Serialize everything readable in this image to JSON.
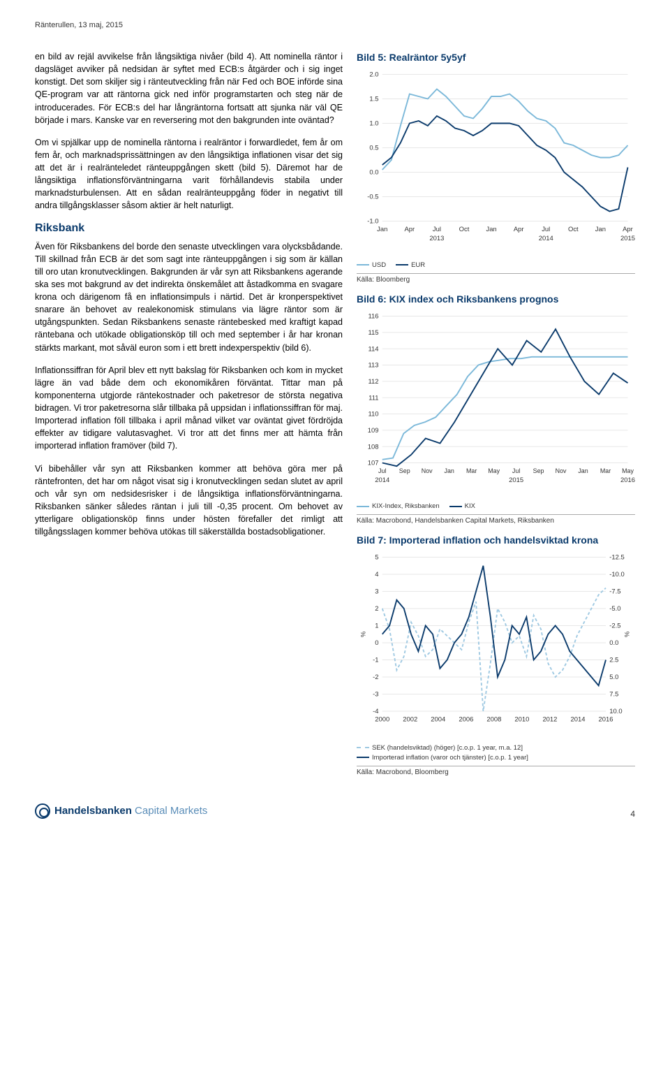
{
  "header": "Ränterullen, 13 maj, 2015",
  "paragraphs": {
    "p1": "en bild av rejäl avvikelse från långsiktiga nivåer (bild 4). Att nominella räntor i dagsläget avviker på nedsidan är syftet med ECB:s åtgärder och i sig inget konstigt. Det som skiljer sig i ränteutveckling från när Fed och BOE införde sina QE-program var att räntorna gick ned inför programstarten och steg när de introducerades. För ECB:s del har långräntorna fortsatt att sjunka när väl QE började i mars. Kanske var en reversering mot den bakgrunden inte oväntad?",
    "p2": "Om vi spjälkar upp de nominella räntorna i realräntor i forwardledet, fem år om fem år, och marknadsprissättningen av den långsiktiga inflationen visar det sig att det är i realränteledet ränteuppgången skett (bild 5). Däremot har de långsiktiga inflationsförväntningarna varit förhållandevis stabila under marknadsturbulensen. Att en sådan realränteuppgång föder in negativt till andra tillgångsklasser såsom aktier är helt naturligt.",
    "p3": "Även för Riksbankens del borde den senaste utvecklingen vara olycksbådande. Till skillnad från ECB är det som sagt inte ränteuppgången i sig som är källan till oro utan kronutvecklingen. Bakgrunden är vår syn att Riksbankens agerande ska ses mot bakgrund av det indirekta önskemålet att åstadkomma en svagare krona och därigenom få en inflationsimpuls i närtid. Det är kronperspektivet snarare än behovet av realekonomisk stimulans via lägre räntor som är utgångspunkten. Sedan Riksbankens senaste räntebesked med kraftigt kapad räntebana och utökade obligationsköp till och med september i år har kronan stärkts markant, mot såväl euron som i ett brett indexperspektiv (bild 6).",
    "p4": "Inflationssiffran för April blev ett nytt bakslag för Riksbanken och kom in mycket lägre än vad både dem och ekonomikåren förväntat. Tittar man på komponenterna utgjorde räntekostnader och paketresor de största negativa bidragen. Vi tror paketresorna slår tillbaka på uppsidan i inflationssiffran för maj. Importerad inflation föll tillbaka i april månad vilket var oväntat givet fördröjda effekter av tidigare valutasvaghet. Vi tror att det finns mer att hämta från importerad inflation framöver (bild 7).",
    "p5": "Vi bibehåller vår syn att Riksbanken kommer att behöva göra mer på räntefronten, det har om något visat sig i kronutvecklingen sedan slutet av april och vår syn om nedsidesrisker i de långsiktiga inflationsförväntningarna. Riksbanken sänker således räntan i juli till -0,35 procent. Om behovet av ytterligare obligationsköp finns under hösten förefaller det rimligt att tillgångsslagen kommer behöva utökas till säkerställda bostadsobligationer."
  },
  "riksbank_heading": "Riksbank",
  "chart5": {
    "title": "Bild 5: Realräntor 5y5yf",
    "type": "line",
    "ylim": [
      -1.0,
      2.0
    ],
    "ytick_step": 0.5,
    "yticks": [
      "2.0",
      "1.5",
      "1.0",
      "0.5",
      "0.0",
      "-0.5",
      "-1.0"
    ],
    "x_labels": [
      "Jan",
      "Apr",
      "Jul",
      "Oct",
      "Jan",
      "Apr",
      "Jul",
      "Oct",
      "Jan",
      "Apr"
    ],
    "x_years": [
      "2013",
      "2014",
      "2015"
    ],
    "series": [
      {
        "name": "USD",
        "color": "#7bb8d9",
        "data": [
          0.05,
          0.25,
          0.95,
          1.6,
          1.55,
          1.5,
          1.7,
          1.55,
          1.35,
          1.15,
          1.1,
          1.3,
          1.55,
          1.55,
          1.6,
          1.45,
          1.25,
          1.1,
          1.05,
          0.9,
          0.6,
          0.55,
          0.45,
          0.35,
          0.3,
          0.3,
          0.35,
          0.55
        ]
      },
      {
        "name": "EUR",
        "color": "#0a3a6b",
        "data": [
          0.15,
          0.3,
          0.6,
          1.0,
          1.05,
          0.95,
          1.15,
          1.05,
          0.9,
          0.85,
          0.75,
          0.85,
          1.0,
          1.0,
          1.0,
          0.95,
          0.75,
          0.55,
          0.45,
          0.3,
          0.0,
          -0.15,
          -0.3,
          -0.5,
          -0.7,
          -0.8,
          -0.75,
          0.1
        ]
      }
    ],
    "legend_labels": [
      "USD",
      "EUR"
    ],
    "source": "Källa: Bloomberg",
    "background_color": "#ffffff",
    "grid_color": "#d0d0d0",
    "font_size": 9
  },
  "chart6": {
    "title": "Bild 6: KIX index och Riksbankens prognos",
    "type": "line",
    "ylim": [
      107,
      116
    ],
    "ytick_step": 1,
    "yticks": [
      "116",
      "115",
      "114",
      "113",
      "112",
      "111",
      "110",
      "109",
      "108",
      "107"
    ],
    "x_labels": [
      "Jul",
      "Sep",
      "Nov",
      "Jan",
      "Mar",
      "May",
      "Jul",
      "Sep",
      "Nov",
      "Jan",
      "Mar",
      "May"
    ],
    "x_years": [
      "2014",
      "2015",
      "2016"
    ],
    "series": [
      {
        "name": "KIX-Index, Riksbanken",
        "color": "#7bb8d9",
        "data": [
          107.2,
          107.3,
          108.8,
          109.3,
          109.5,
          109.8,
          110.5,
          111.2,
          112.3,
          113.0,
          113.2,
          113.3,
          113.4,
          113.4,
          113.5,
          113.5,
          113.5,
          113.5,
          113.5,
          113.5,
          113.5,
          113.5,
          113.5,
          113.5
        ]
      },
      {
        "name": "KIX",
        "color": "#0a3a6b",
        "data": [
          107.0,
          106.8,
          107.5,
          108.5,
          108.2,
          109.5,
          111.0,
          112.5,
          114.0,
          113.0,
          114.5,
          113.8,
          115.2,
          113.5,
          112.0,
          111.2,
          112.5,
          111.9
        ]
      }
    ],
    "legend_labels": [
      "KIX-Index, Riksbanken",
      "KIX"
    ],
    "source": "Källa: Macrobond, Handelsbanken Capital Markets, Riksbanken",
    "background_color": "#ffffff",
    "grid_color": "#d0d0d0",
    "font_size": 9
  },
  "chart7": {
    "title": "Bild 7: Importerad inflation och handelsviktad krona",
    "type": "dual-axis-line",
    "ylim_left": [
      -4,
      5
    ],
    "ytick_left": [
      5,
      4,
      3,
      2,
      1,
      0,
      -1,
      -2,
      -3,
      -4
    ],
    "ylim_right": [
      10.0,
      -12.5
    ],
    "ytick_right": [
      "-12.5",
      "-10.0",
      "-7.5",
      "-5.0",
      "-2.5",
      "0.0",
      "2.5",
      "5.0",
      "7.5",
      "10.0"
    ],
    "x_labels": [
      "2000",
      "2002",
      "2004",
      "2006",
      "2008",
      "2010",
      "2012",
      "2014",
      "2016"
    ],
    "ylabel_left": "%",
    "ylabel_right": "%",
    "series": [
      {
        "name": "SEK (handelsviktad) (höger) [c.o.p. 1 year, m.a. 12]",
        "color": "#9fc9e2",
        "dash": "4,3",
        "data": [
          -5,
          -2,
          4,
          2,
          -3,
          -1,
          2,
          1,
          -2,
          -1,
          0,
          1,
          -3,
          -6,
          10,
          3,
          -5,
          -3,
          0,
          -1,
          2,
          -4,
          -2,
          3,
          5,
          4,
          2,
          -1,
          -3,
          -5,
          -7,
          -8
        ]
      },
      {
        "name": "Importerad inflation (varor och tjänster) [c.o.p. 1 year]",
        "color": "#0a3a6b",
        "data": [
          0.5,
          1.0,
          2.5,
          2.0,
          0.5,
          -0.5,
          1.0,
          0.5,
          -1.5,
          -1.0,
          0.0,
          0.5,
          1.5,
          3.0,
          4.5,
          1.5,
          -2.0,
          -1.0,
          1.0,
          0.5,
          1.5,
          -1.0,
          -0.5,
          0.5,
          1.0,
          0.5,
          -0.5,
          -1.0,
          -1.5,
          -2.0,
          -2.5,
          -1.0
        ]
      }
    ],
    "legend_labels": [
      "SEK (handelsviktad) (höger) [c.o.p. 1 year, m.a. 12]",
      "Importerad inflation (varor och tjänster) [c.o.p. 1 year]"
    ],
    "source": "Källa: Macrobond, Bloomberg",
    "background_color": "#ffffff",
    "grid_color": "#d0d0d0",
    "font_size": 9
  },
  "footer": {
    "logo_main": "Handelsbanken",
    "logo_sub": "Capital Markets",
    "page": "4"
  }
}
